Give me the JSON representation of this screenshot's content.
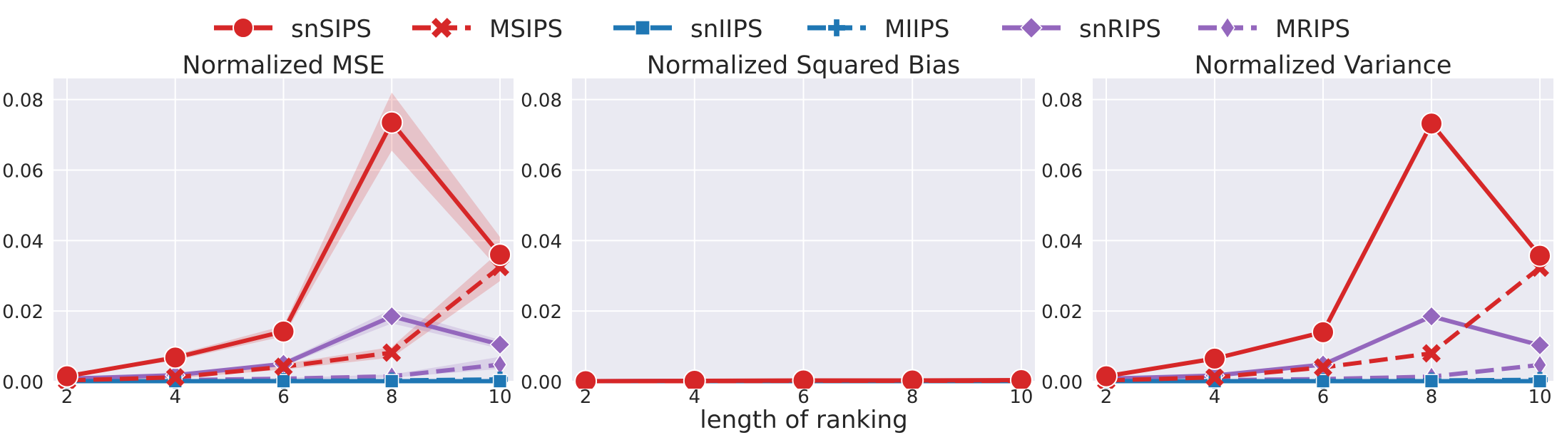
{
  "legend": {
    "placement": "top-center",
    "entries": [
      {
        "name": "snSIPS",
        "color": "#d62728",
        "dash": "solid",
        "marker": "circle"
      },
      {
        "name": "MSIPS",
        "color": "#d62728",
        "dash": "dashed",
        "marker": "x"
      },
      {
        "name": "snIIPS",
        "color": "#1f77b4",
        "dash": "solid",
        "marker": "square"
      },
      {
        "name": "MIIPS",
        "color": "#1f77b4",
        "dash": "dashed",
        "marker": "plus"
      },
      {
        "name": "snRIPS",
        "color": "#9467bd",
        "dash": "solid",
        "marker": "diamond"
      },
      {
        "name": "MRIPS",
        "color": "#9467bd",
        "dash": "dashed",
        "marker": "thin-diamond"
      }
    ]
  },
  "shared_xlabel": "length of ranking",
  "chart_data": [
    {
      "type": "line",
      "title": "Normalized MSE",
      "x": [
        2,
        4,
        6,
        8,
        10
      ],
      "xlim": [
        1.75,
        10.25
      ],
      "ylim": [
        0,
        0.086
      ],
      "xticks": [
        "2",
        "4",
        "6",
        "8",
        "10"
      ],
      "yticks": [
        "0.00",
        "0.02",
        "0.04",
        "0.06",
        "0.08"
      ],
      "grid": true,
      "series": [
        {
          "name": "snSIPS",
          "values": [
            0.0015,
            0.0068,
            0.0142,
            0.0735,
            0.036
          ],
          "band_low": [
            0.0012,
            0.006,
            0.0128,
            0.0655,
            0.0315
          ],
          "band_high": [
            0.0018,
            0.0076,
            0.0158,
            0.082,
            0.041
          ]
        },
        {
          "name": "MSIPS",
          "values": [
            0.0003,
            0.0012,
            0.0042,
            0.0082,
            0.0325
          ],
          "band_low": [
            0.0002,
            0.0009,
            0.0034,
            0.0068,
            0.0285
          ],
          "band_high": [
            0.0004,
            0.0015,
            0.005,
            0.0098,
            0.037
          ]
        },
        {
          "name": "snIIPS",
          "values": [
            0.0001,
            0.0001,
            0.0001,
            0.0001,
            0.0001
          ]
        },
        {
          "name": "MIIPS",
          "values": [
            0.0001,
            0.0001,
            0.0002,
            0.0003,
            0.0006
          ]
        },
        {
          "name": "snRIPS",
          "values": [
            0.0008,
            0.0018,
            0.005,
            0.0185,
            0.0105
          ],
          "band_low": [
            0.0006,
            0.0015,
            0.0044,
            0.0165,
            0.0093
          ],
          "band_high": [
            0.001,
            0.0021,
            0.0057,
            0.0205,
            0.0118
          ]
        },
        {
          "name": "MRIPS",
          "values": [
            0.0002,
            0.0004,
            0.0008,
            0.0015,
            0.0048
          ],
          "band_low": [
            0.0001,
            0.0003,
            0.0006,
            0.0011,
            0.0036
          ],
          "band_high": [
            0.0003,
            0.0006,
            0.001,
            0.002,
            0.007
          ]
        }
      ]
    },
    {
      "type": "line",
      "title": "Normalized Squared Bias",
      "x": [
        2,
        4,
        6,
        8,
        10
      ],
      "xlim": [
        1.75,
        10.25
      ],
      "ylim": [
        0,
        0.086
      ],
      "xticks": [
        "2",
        "4",
        "6",
        "8",
        "10"
      ],
      "yticks": [
        "0.00",
        "0.02",
        "0.04",
        "0.06",
        "0.08"
      ],
      "grid": true,
      "series": [
        {
          "name": "snSIPS",
          "values": [
            0.0001,
            0.0002,
            0.0003,
            0.0003,
            0.0004
          ]
        },
        {
          "name": "MSIPS",
          "values": [
            0.0001,
            0.0001,
            0.0002,
            0.0002,
            0.0002
          ]
        },
        {
          "name": "snIIPS",
          "values": [
            0.0001,
            0.0001,
            0.0001,
            0.0001,
            0.0001
          ]
        },
        {
          "name": "MIIPS",
          "values": [
            0.0001,
            0.0001,
            0.0001,
            0.0001,
            0.0001
          ]
        },
        {
          "name": "snRIPS",
          "values": [
            0.0001,
            0.0002,
            0.0002,
            0.0002,
            0.0002
          ]
        },
        {
          "name": "MRIPS",
          "values": [
            0.0001,
            0.0001,
            0.0001,
            0.0001,
            0.0001
          ]
        }
      ]
    },
    {
      "type": "line",
      "title": "Normalized Variance",
      "x": [
        2,
        4,
        6,
        8,
        10
      ],
      "xlim": [
        1.75,
        10.25
      ],
      "ylim": [
        0,
        0.086
      ],
      "xticks": [
        "2",
        "4",
        "6",
        "8",
        "10"
      ],
      "yticks": [
        "0.00",
        "0.02",
        "0.04",
        "0.06",
        "0.08"
      ],
      "grid": true,
      "series": [
        {
          "name": "snSIPS",
          "values": [
            0.0015,
            0.0065,
            0.014,
            0.0732,
            0.0357
          ]
        },
        {
          "name": "MSIPS",
          "values": [
            0.0003,
            0.0012,
            0.004,
            0.008,
            0.0323
          ]
        },
        {
          "name": "snIIPS",
          "values": [
            0.0001,
            0.0001,
            0.0001,
            0.0001,
            0.0001
          ]
        },
        {
          "name": "MIIPS",
          "values": [
            0.0001,
            0.0001,
            0.0002,
            0.0003,
            0.0005
          ]
        },
        {
          "name": "snRIPS",
          "values": [
            0.0008,
            0.0017,
            0.0048,
            0.0185,
            0.0103
          ]
        },
        {
          "name": "MRIPS",
          "values": [
            0.0002,
            0.0004,
            0.0007,
            0.0014,
            0.0047
          ]
        }
      ]
    }
  ]
}
